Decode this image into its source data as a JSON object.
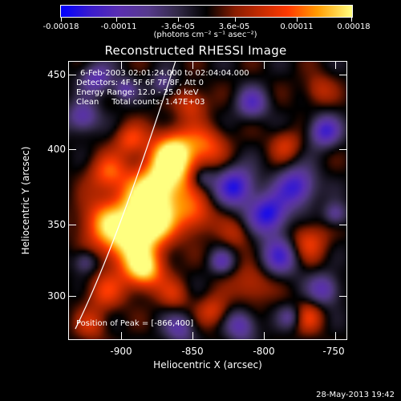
{
  "colorbar": {
    "tick_labels": [
      "-0.00018",
      "-0.00011",
      "-3.6e-05",
      "3.6e-05",
      "0.00011",
      "0.00018"
    ],
    "tick_values": [
      -0.00018,
      -0.00011,
      -3.6e-05,
      3.6e-05,
      0.00011,
      0.00018
    ],
    "range": [
      -0.00018,
      0.00018
    ],
    "units": "(photons cm⁻² s⁻¹ asec⁻²)"
  },
  "title": "Reconstructed RHESSI Image",
  "info": {
    "time_range": "6-Feb-2003 02:01:24.000 to 02:04:04.000",
    "detectors": "Detectors: 4F 5F 6F 7F 8F, Att 0",
    "energy": "Energy Range: 12.0 - 25.0 keV",
    "clean": "Clean     Total counts: 1.47E+03",
    "peak": "Position of Peak = [-866,400]"
  },
  "chart_data": {
    "type": "heatmap",
    "title": "Reconstructed RHESSI Image",
    "xlabel": "Heliocentric X (arcsec)",
    "ylabel": "Heliocentric Y (arcsec)",
    "xlim": [
      -940,
      -745
    ],
    "ylim": [
      270,
      465
    ],
    "x_ticks": [
      -900,
      -850,
      -800,
      -750
    ],
    "y_ticks": [
      300,
      350,
      400,
      450
    ],
    "x_tick_labels": [
      "-900",
      "-850",
      "-800",
      "-750"
    ],
    "y_tick_labels": [
      "300",
      "350",
      "400",
      "450"
    ],
    "peak_position": [
      -866,
      400
    ],
    "colorbar_range": [
      -0.00018,
      0.00018
    ]
  },
  "timestamp": "28-May-2013 19:42"
}
